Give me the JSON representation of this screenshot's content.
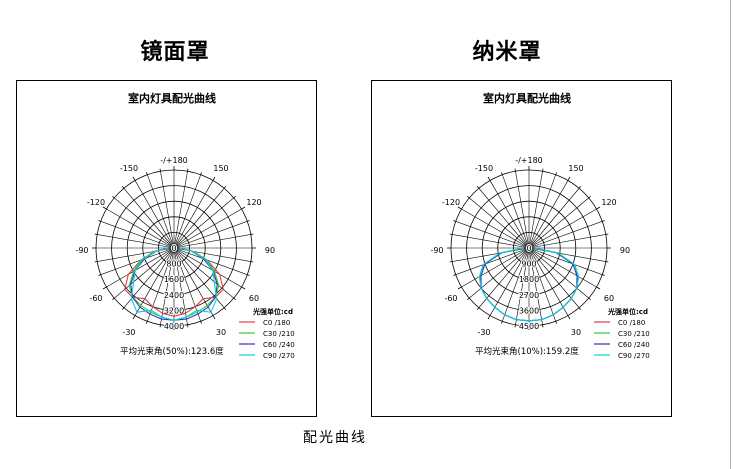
{
  "page": {
    "caption": "配光曲线"
  },
  "chart_data": [
    {
      "type": "polar-line",
      "section_title": "镜面罩",
      "title": "室内灯具配光曲线",
      "angle_labels": [
        "-/+180",
        "150",
        "120",
        "90",
        "60",
        "30",
        "0",
        "-30",
        "-60",
        "-90",
        "-120",
        "-150"
      ],
      "radial_labels": [
        "0",
        "800",
        "1600",
        "2400",
        "3200",
        "4000"
      ],
      "rmax": 4000,
      "legend_title": "光强单位:cd",
      "legend": [
        {
          "name": "C0  /180",
          "color": "#e04040"
        },
        {
          "name": "C30 /210",
          "color": "#33cc33"
        },
        {
          "name": "C60 /240",
          "color": "#3333cc"
        },
        {
          "name": "C90 /270",
          "color": "#00d0e0"
        }
      ],
      "beam_angle_text": "平均光束角(50%):123.6度",
      "series": [
        {
          "name": "C0  /180",
          "color": "#e04040",
          "angles": [
            -90,
            -80,
            -70,
            -60,
            -50,
            -40,
            -30,
            -20,
            -10,
            0,
            10,
            20,
            30,
            40,
            50,
            60,
            70,
            80,
            90
          ],
          "values": [
            300,
            1000,
            1800,
            2700,
            3300,
            3300,
            3000,
            3200,
            3400,
            3500,
            3400,
            3200,
            3000,
            3300,
            3300,
            2700,
            1800,
            1000,
            300
          ]
        },
        {
          "name": "C30 /210",
          "color": "#33cc33",
          "angles": [
            -90,
            -80,
            -70,
            -60,
            -50,
            -40,
            -30,
            -20,
            -10,
            0,
            10,
            20,
            30,
            40,
            50,
            60,
            70,
            80,
            90
          ],
          "values": [
            300,
            1000,
            1800,
            2400,
            3000,
            3300,
            3400,
            3500,
            3600,
            3700,
            3600,
            3500,
            3400,
            3300,
            3000,
            2400,
            1800,
            1000,
            300
          ]
        },
        {
          "name": "C60 /240",
          "color": "#3333cc",
          "angles": [
            -90,
            -80,
            -70,
            -60,
            -50,
            -40,
            -30,
            -20,
            -10,
            0,
            10,
            20,
            30,
            40,
            50,
            60,
            70,
            80,
            90
          ],
          "values": [
            300,
            900,
            1600,
            2300,
            2900,
            3300,
            3500,
            3600,
            3700,
            3700,
            3700,
            3600,
            3500,
            3300,
            2900,
            2300,
            1600,
            900,
            300
          ]
        },
        {
          "name": "C90 /270",
          "color": "#00d0e0",
          "angles": [
            -90,
            -80,
            -70,
            -60,
            -50,
            -40,
            -30,
            -20,
            -10,
            0,
            10,
            20,
            30,
            40,
            50,
            60,
            70,
            80,
            90
          ],
          "values": [
            300,
            900,
            1700,
            2300,
            2700,
            3400,
            3800,
            3400,
            3600,
            3700,
            3600,
            3400,
            3800,
            3400,
            2700,
            2300,
            1700,
            900,
            300
          ]
        }
      ]
    },
    {
      "type": "polar-line",
      "section_title": "纳米罩",
      "title": "室内灯具配光曲线",
      "angle_labels": [
        "-/+180",
        "150",
        "120",
        "90",
        "60",
        "30",
        "0",
        "-30",
        "-60",
        "-90",
        "-120",
        "-150"
      ],
      "radial_labels": [
        "0",
        "900",
        "1800",
        "2700",
        "3600",
        "4500"
      ],
      "rmax": 4500,
      "legend_title": "光强单位:cd",
      "legend": [
        {
          "name": "C0  /180",
          "color": "#e04040"
        },
        {
          "name": "C30 /210",
          "color": "#33cc33"
        },
        {
          "name": "C60 /240",
          "color": "#3333cc"
        },
        {
          "name": "C90 /270",
          "color": "#00d0e0"
        }
      ],
      "beam_angle_text": "平均光束角(10%):159.2度",
      "series": [
        {
          "name": "C0  /180",
          "color": "#e04040",
          "angles": [
            -90,
            -80,
            -70,
            -60,
            -50,
            -40,
            -30,
            -20,
            -10,
            0,
            10,
            20,
            30,
            40,
            50,
            60,
            70,
            80,
            90
          ],
          "values": [
            300,
            1700,
            2800,
            3300,
            3600,
            3800,
            3950,
            4100,
            4200,
            4200,
            4200,
            4100,
            3950,
            3800,
            3600,
            3300,
            2800,
            1700,
            300
          ]
        },
        {
          "name": "C30 /210",
          "color": "#33cc33",
          "angles": [
            -90,
            -80,
            -70,
            -60,
            -50,
            -40,
            -30,
            -20,
            -10,
            0,
            10,
            20,
            30,
            40,
            50,
            60,
            70,
            80,
            90
          ],
          "values": [
            300,
            1700,
            2800,
            3300,
            3600,
            3800,
            3950,
            4100,
            4200,
            4200,
            4200,
            4100,
            3950,
            3800,
            3600,
            3300,
            2800,
            1700,
            300
          ]
        },
        {
          "name": "C60 /240",
          "color": "#3333cc",
          "angles": [
            -90,
            -80,
            -70,
            -60,
            -50,
            -40,
            -30,
            -20,
            -10,
            0,
            10,
            20,
            30,
            40,
            50,
            60,
            70,
            80,
            90
          ],
          "values": [
            300,
            1600,
            2700,
            3200,
            3600,
            3800,
            3950,
            4100,
            4200,
            4200,
            4200,
            4100,
            3950,
            3800,
            3600,
            3200,
            2700,
            1600,
            300
          ]
        },
        {
          "name": "C90 /270",
          "color": "#00d0e0",
          "angles": [
            -90,
            -80,
            -70,
            -60,
            -50,
            -40,
            -30,
            -20,
            -10,
            0,
            10,
            20,
            30,
            40,
            50,
            60,
            70,
            80,
            90
          ],
          "values": [
            300,
            1700,
            2800,
            3300,
            3600,
            3800,
            3950,
            4100,
            4200,
            4200,
            4200,
            4100,
            3950,
            3800,
            3600,
            3300,
            2800,
            1700,
            300
          ]
        }
      ]
    }
  ]
}
